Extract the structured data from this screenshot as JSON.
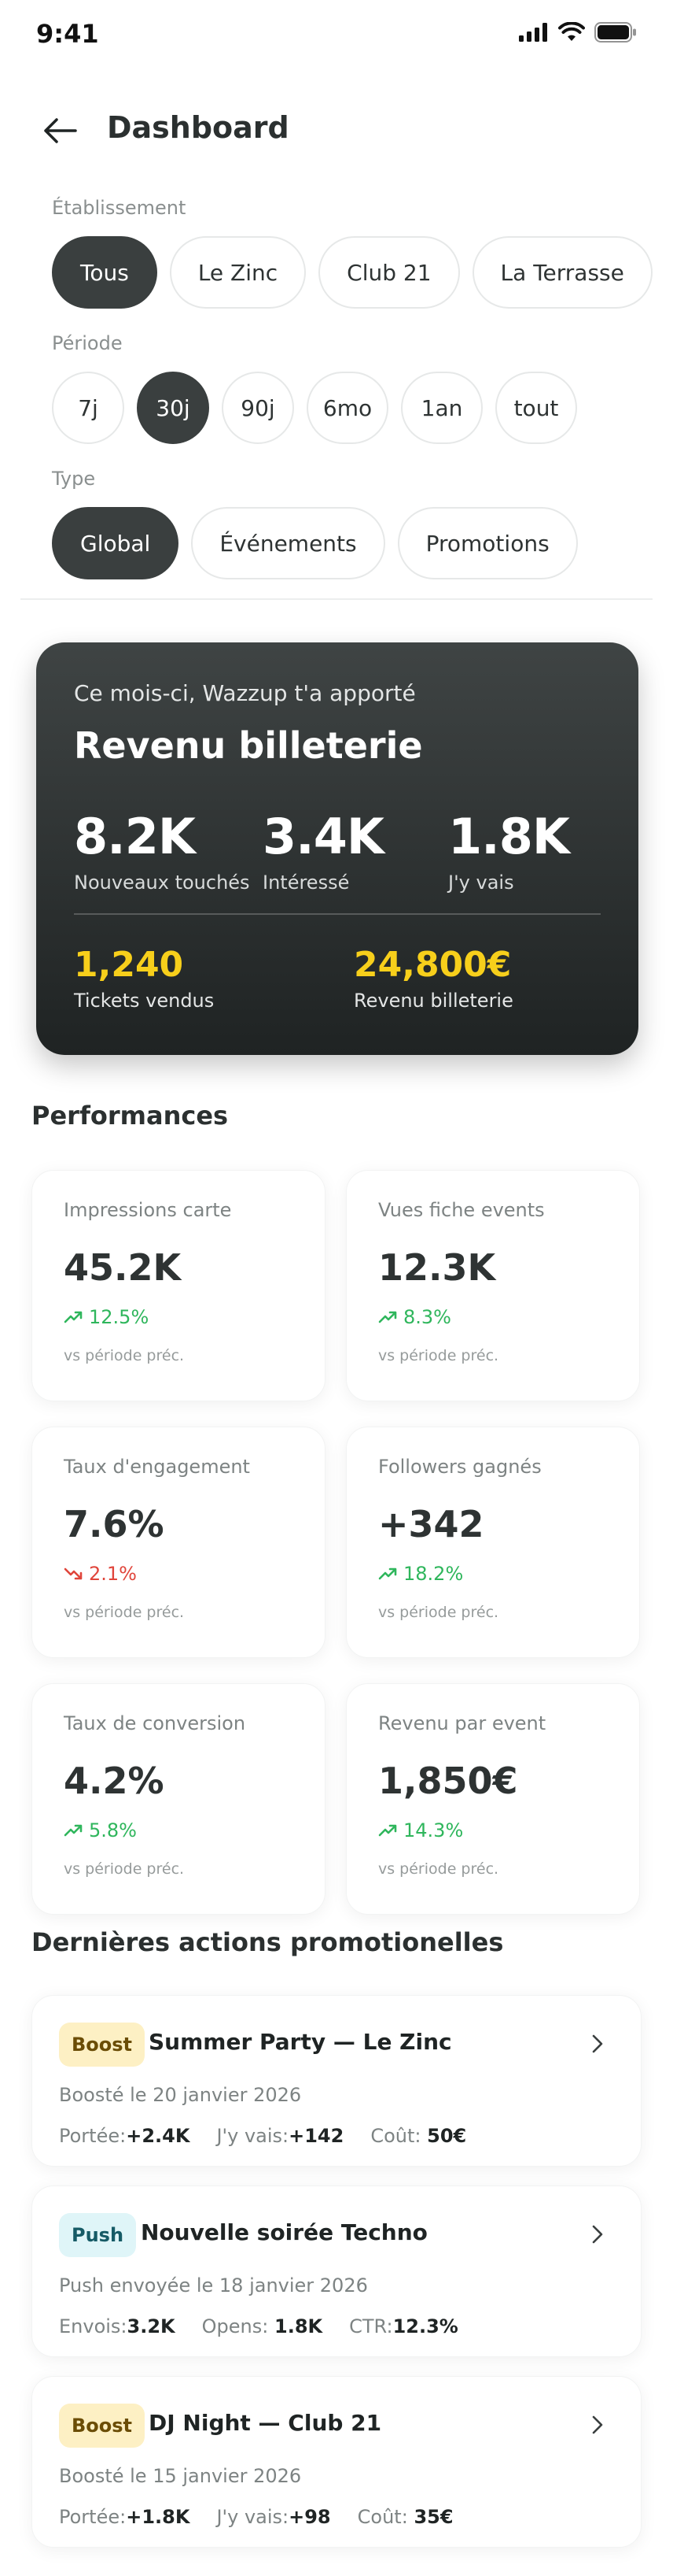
{
  "status_bar": {
    "time": "9:41"
  },
  "header": {
    "title": "Dashboard"
  },
  "filters": {
    "etablissement": {
      "label": "Établissement",
      "options": [
        "Tous",
        "Le Zinc",
        "Club 21",
        "La Terrasse"
      ],
      "selected": "Tous"
    },
    "periode": {
      "label": "Période",
      "options": [
        "7j",
        "30j",
        "90j",
        "6mo",
        "1an",
        "tout"
      ],
      "selected": "30j"
    },
    "type": {
      "label": "Type",
      "options": [
        "Global",
        "Événements",
        "Promotions"
      ],
      "selected": "Global"
    }
  },
  "hero": {
    "subtitle": "Ce mois-ci, Wazzup t'a apporté",
    "title": "Revenu billeterie",
    "stats": [
      {
        "value": "8.2K",
        "label": "Nouveaux touchés"
      },
      {
        "value": "3.4K",
        "label": "Intéressé"
      },
      {
        "value": "1.8K",
        "label": "J'y vais"
      }
    ],
    "kpis": [
      {
        "value": "1,240",
        "label": "Tickets vendus"
      },
      {
        "value": "24,800€",
        "label": "Revenu billeterie"
      }
    ]
  },
  "performances": {
    "title": "Performances",
    "note": "vs période préc.",
    "cards": [
      {
        "label": "Impressions carte",
        "value": "45.2K",
        "trend": "12.5%",
        "direction": "up"
      },
      {
        "label": "Vues fiche events",
        "value": "12.3K",
        "trend": "8.3%",
        "direction": "up"
      },
      {
        "label": "Taux d'engagement",
        "value": "7.6%",
        "trend": "2.1%",
        "direction": "down"
      },
      {
        "label": "Followers gagnés",
        "value": "+342",
        "trend": "18.2%",
        "direction": "up"
      },
      {
        "label": "Taux de conversion",
        "value": "4.2%",
        "trend": "5.8%",
        "direction": "up"
      },
      {
        "label": "Revenu par event",
        "value": "1,850€",
        "trend": "14.3%",
        "direction": "up"
      }
    ]
  },
  "promotions": {
    "title": "Dernières actions promotionelles",
    "items": [
      {
        "badge": "Boost",
        "kind": "boost",
        "title": "Summer Party — Le Zinc",
        "date": "Boosté le 20 janvier 2026",
        "stats": [
          {
            "label": "Portée:",
            "value": "+2.4K"
          },
          {
            "label": "J'y vais:",
            "value": "+142"
          },
          {
            "label": "Coût:",
            "value": "50€"
          }
        ]
      },
      {
        "badge": "Push",
        "kind": "push",
        "title": "Nouvelle soirée Techno",
        "date": "Push envoyée le 18 janvier 2026",
        "stats": [
          {
            "label": "Envois:",
            "value": "3.2K"
          },
          {
            "label": "Opens:",
            "value": "1.8K"
          },
          {
            "label": "CTR:",
            "value": "12.3%"
          }
        ]
      },
      {
        "badge": "Boost",
        "kind": "boost",
        "title": "DJ Night — Club 21",
        "date": "Boosté le 15 janvier 2026",
        "stats": [
          {
            "label": "Portée:",
            "value": "+1.8K"
          },
          {
            "label": "J'y vais:",
            "value": "+98"
          },
          {
            "label": "Coût:",
            "value": "35€"
          }
        ]
      }
    ]
  },
  "colors": {
    "dark": "#3a3f3f",
    "accent_yellow": "#f7cf1b",
    "trend_up": "#2fb65c",
    "trend_down": "#e0453b"
  }
}
